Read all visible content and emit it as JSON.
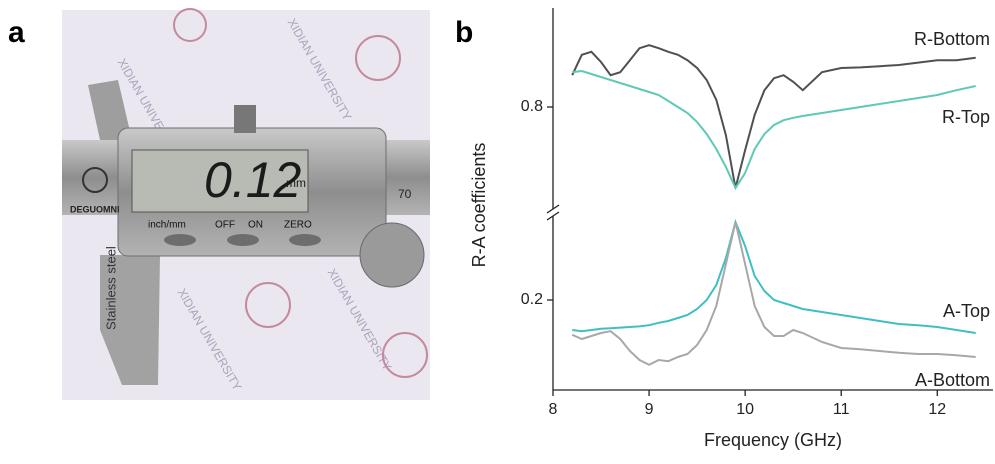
{
  "panel_labels": [
    "a",
    "b"
  ],
  "photo": {
    "display": "0.12",
    "unit": "mm",
    "buttons": [
      "inch/mm",
      "OFF",
      "ON",
      "ZERO"
    ],
    "brand": "DEGUOMNI",
    "blade_text": "Stainless steel",
    "scale_number": "70",
    "watermark": "XIDIAN UNIVERSITY"
  },
  "chart_data": [
    {
      "type": "line",
      "ylabel": "R-A coefficients",
      "x": [
        8.2,
        8.3,
        8.4,
        8.5,
        8.6,
        8.7,
        8.8,
        8.9,
        9.0,
        9.1,
        9.2,
        9.3,
        9.4,
        9.5,
        9.6,
        9.7,
        9.8,
        9.9,
        10.0,
        10.1,
        10.2,
        10.3,
        10.4,
        10.5,
        10.6,
        10.8,
        11.0,
        11.2,
        11.4,
        11.6,
        11.8,
        12.0,
        12.2,
        12.4
      ],
      "xlim": [
        8,
        12.58
      ],
      "ylim": [
        0.63,
        0.965
      ],
      "yticks": [
        0.8
      ],
      "series": [
        {
          "name": "R-Bottom",
          "color": "#505050",
          "values": [
            0.853,
            0.887,
            0.892,
            0.875,
            0.853,
            0.858,
            0.878,
            0.898,
            0.903,
            0.898,
            0.892,
            0.887,
            0.878,
            0.865,
            0.845,
            0.812,
            0.753,
            0.665,
            0.728,
            0.787,
            0.828,
            0.848,
            0.853,
            0.842,
            0.828,
            0.858,
            0.865,
            0.866,
            0.868,
            0.87,
            0.874,
            0.878,
            0.878,
            0.882
          ]
        },
        {
          "name": "R-Top",
          "color": "#5fc9b4",
          "values": [
            0.858,
            0.86,
            0.855,
            0.85,
            0.845,
            0.84,
            0.835,
            0.83,
            0.825,
            0.82,
            0.81,
            0.8,
            0.79,
            0.775,
            0.755,
            0.73,
            0.7,
            0.665,
            0.69,
            0.73,
            0.755,
            0.77,
            0.778,
            0.782,
            0.785,
            0.79,
            0.795,
            0.8,
            0.805,
            0.81,
            0.815,
            0.82,
            0.828,
            0.835
          ]
        }
      ]
    },
    {
      "type": "line",
      "xlabel": "Frequency (GHz)",
      "x": [
        8.2,
        8.3,
        8.4,
        8.5,
        8.6,
        8.7,
        8.8,
        8.9,
        9.0,
        9.1,
        9.2,
        9.3,
        9.4,
        9.5,
        9.6,
        9.7,
        9.8,
        9.9,
        10.0,
        10.1,
        10.2,
        10.3,
        10.4,
        10.5,
        10.6,
        10.8,
        11.0,
        11.2,
        11.4,
        11.6,
        11.8,
        12.0,
        12.2,
        12.4
      ],
      "xlim": [
        8,
        12.58
      ],
      "xticks": [
        8,
        9,
        10,
        11,
        12
      ],
      "ylim": [
        0.05,
        0.34
      ],
      "yticks": [
        0.2
      ],
      "series": [
        {
          "name": "A-Top",
          "color": "#3fbfc4",
          "values": [
            0.15,
            0.148,
            0.15,
            0.152,
            0.153,
            0.154,
            0.155,
            0.156,
            0.158,
            0.162,
            0.165,
            0.17,
            0.175,
            0.185,
            0.2,
            0.225,
            0.27,
            0.33,
            0.29,
            0.24,
            0.215,
            0.2,
            0.195,
            0.19,
            0.185,
            0.18,
            0.175,
            0.17,
            0.165,
            0.16,
            0.158,
            0.155,
            0.15,
            0.145
          ]
        },
        {
          "name": "A-Bottom",
          "color": "#a8a8a8",
          "values": [
            0.142,
            0.135,
            0.14,
            0.145,
            0.148,
            0.135,
            0.115,
            0.1,
            0.092,
            0.1,
            0.098,
            0.105,
            0.11,
            0.125,
            0.15,
            0.19,
            0.26,
            0.33,
            0.26,
            0.19,
            0.155,
            0.14,
            0.14,
            0.15,
            0.145,
            0.13,
            0.12,
            0.118,
            0.115,
            0.112,
            0.11,
            0.11,
            0.108,
            0.105
          ]
        }
      ]
    }
  ]
}
